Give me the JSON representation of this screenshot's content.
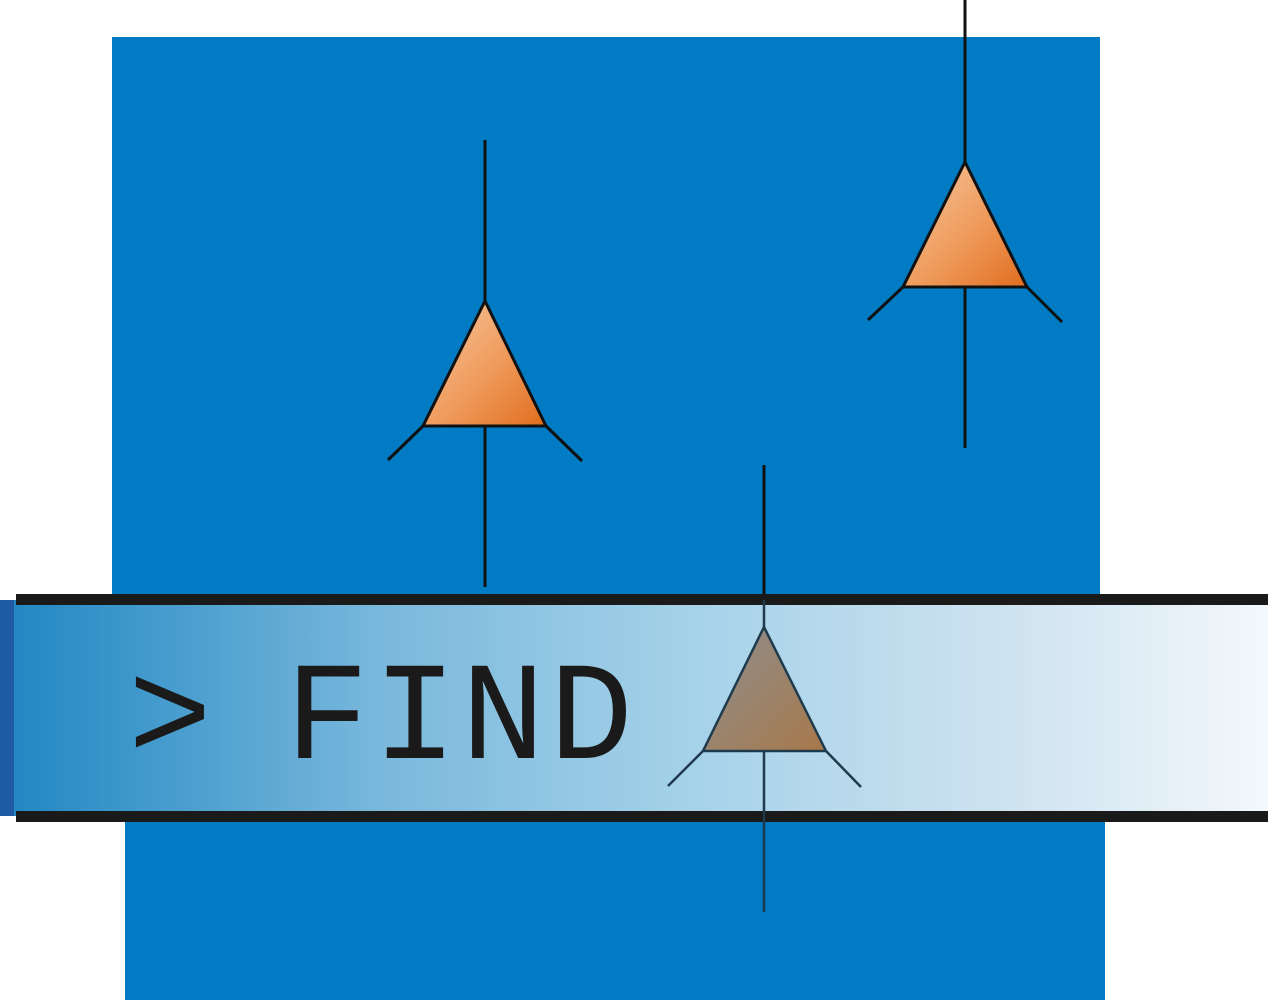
{
  "logo": {
    "word": "FIND",
    "prompt_symbol": ">"
  },
  "colors": {
    "panel": "#007bc4",
    "triangle_light": "#f3b88a",
    "triangle_dark": "#e06d1d",
    "overlay_triangle": "#9a8a78",
    "bar_left": "#2488c4",
    "bar_right": "#eef5fb",
    "line": "#111111"
  },
  "icons": [
    {
      "name": "up-triangle-icon"
    },
    {
      "name": "up-triangle-icon"
    },
    {
      "name": "up-triangle-icon"
    }
  ]
}
